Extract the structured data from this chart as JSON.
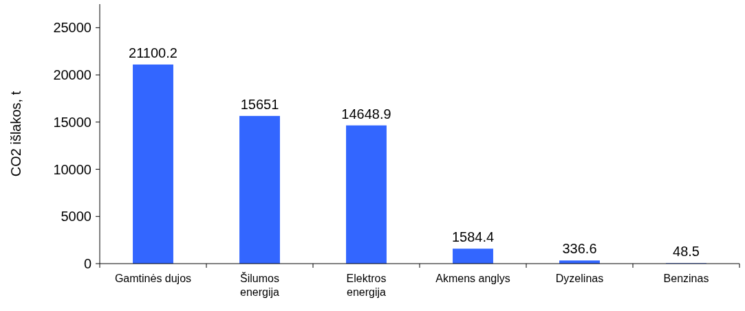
{
  "chart_data": {
    "type": "bar",
    "ylabel": "CO2 išlakos, t",
    "categories": [
      "Gamtinės dujos",
      "Šilumos\nenergija",
      "Elektros\nenergija",
      "Akmens anglys",
      "Dyzelinas",
      "Benzinas"
    ],
    "values": [
      21100.2,
      15651,
      14648.9,
      1584.4,
      336.6,
      48.5
    ],
    "color": "#3366ff",
    "data_labels": true,
    "ylim": [
      0,
      27500
    ],
    "yticks": [
      0,
      5000,
      10000,
      15000,
      20000,
      25000
    ],
    "grid": false
  }
}
